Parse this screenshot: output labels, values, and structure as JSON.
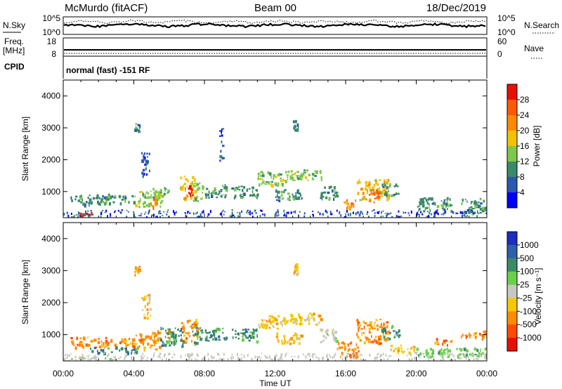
{
  "header": {
    "station_title": "McMurdo (fitACF)",
    "beam_title": "Beam 00",
    "date": "18/Dec/2019"
  },
  "top_panels": {
    "noise_left_label": "N.Sky",
    "noise_right_label": "N.Search",
    "noise_left_ticks": [
      "10^5",
      "10^0"
    ],
    "noise_right_ticks": [
      "10^5",
      "10^0"
    ],
    "freq_label_line1": "Freq.",
    "freq_label_line2": "[MHz]",
    "freq_ticks": [
      "18",
      "8"
    ],
    "nave_label": "Nave",
    "nave_ticks": [
      "60",
      "0"
    ],
    "cpid_label": "CPID",
    "cpid_text": "normal (fast) -151 RF"
  },
  "chart_data": [
    {
      "type": "heatmap",
      "name": "power",
      "ylabel": "Slant Range [km]",
      "y_ticks": [
        "1000",
        "2000",
        "3000",
        "4000"
      ],
      "colorbar_label": "Power [dB]",
      "colorbar_ticks": [
        "4",
        "8",
        "12",
        "16",
        "20",
        "24",
        "28"
      ],
      "colors": [
        "#0000ff",
        "#2b57b0",
        "#3a8a6a",
        "#7ec84a",
        "#f2c200",
        "#ff8a00",
        "#ff5a00",
        "#e81000"
      ],
      "x_ticks": [
        "00:00",
        "04:00",
        "08:00",
        "12:00",
        "16:00",
        "20:00",
        "00:00"
      ],
      "ylim_km": [
        180,
        4500
      ],
      "xlim_hours": [
        0,
        24
      ],
      "scatter_patches": [
        {
          "x0": 0.4,
          "x1": 2.6,
          "y0": 600,
          "y1": 950,
          "level": 2
        },
        {
          "x0": 2.5,
          "x1": 4.0,
          "y0": 650,
          "y1": 900,
          "level": 2
        },
        {
          "x0": 4.0,
          "x1": 5.6,
          "y0": 550,
          "y1": 1050,
          "level": 3
        },
        {
          "x0": 4.9,
          "x1": 5.3,
          "y0": 450,
          "y1": 900,
          "level": 5
        },
        {
          "x0": 5.0,
          "x1": 6.0,
          "y0": 800,
          "y1": 1150,
          "level": 3
        },
        {
          "x0": 6.6,
          "x1": 7.6,
          "y0": 800,
          "y1": 1500,
          "level": 4
        },
        {
          "x0": 7.0,
          "x1": 7.3,
          "y0": 900,
          "y1": 1250,
          "level": 7
        },
        {
          "x0": 7.3,
          "x1": 7.9,
          "y0": 700,
          "y1": 1300,
          "level": 3
        },
        {
          "x0": 8.0,
          "x1": 9.2,
          "y0": 800,
          "y1": 1250,
          "level": 2
        },
        {
          "x0": 9.5,
          "x1": 11.0,
          "y0": 800,
          "y1": 1200,
          "level": 2
        },
        {
          "x0": 11.0,
          "x1": 12.5,
          "y0": 1200,
          "y1": 1650,
          "level": 3
        },
        {
          "x0": 12.5,
          "x1": 14.6,
          "y0": 1350,
          "y1": 1700,
          "level": 3
        },
        {
          "x0": 12.0,
          "x1": 13.5,
          "y0": 750,
          "y1": 1100,
          "level": 2
        },
        {
          "x0": 14.5,
          "x1": 15.5,
          "y0": 800,
          "y1": 1200,
          "level": 2
        },
        {
          "x0": 15.8,
          "x1": 16.6,
          "y0": 500,
          "y1": 800,
          "level": 5
        },
        {
          "x0": 16.6,
          "x1": 18.4,
          "y0": 750,
          "y1": 1400,
          "level": 4
        },
        {
          "x0": 17.3,
          "x1": 17.9,
          "y0": 650,
          "y1": 1150,
          "level": 6
        },
        {
          "x0": 18.0,
          "x1": 19.0,
          "y0": 900,
          "y1": 1300,
          "level": 2
        },
        {
          "x0": 20.0,
          "x1": 22.0,
          "y0": 400,
          "y1": 850,
          "level": 2
        },
        {
          "x0": 22.5,
          "x1": 24.0,
          "y0": 350,
          "y1": 800,
          "level": 2
        },
        {
          "x0": 0.8,
          "x1": 1.6,
          "y0": 180,
          "y1": 380,
          "level": 7
        },
        {
          "x0": 4.4,
          "x1": 4.9,
          "y0": 1500,
          "y1": 2300,
          "level": 1
        },
        {
          "x0": 8.8,
          "x1": 9.0,
          "y0": 2000,
          "y1": 3000,
          "level": 1
        },
        {
          "x0": 13.0,
          "x1": 13.3,
          "y0": 2900,
          "y1": 3300,
          "level": 2
        },
        {
          "x0": 4.0,
          "x1": 4.3,
          "y0": 2900,
          "y1": 3200,
          "level": 2
        }
      ]
    },
    {
      "type": "heatmap",
      "name": "velocity",
      "ylabel": "Slant Range [km]",
      "y_ticks": [
        "1000",
        "2000",
        "3000",
        "4000"
      ],
      "colorbar_label": "Velocity  [m s⁻¹]",
      "colorbar_ticks": [
        "1000",
        "500",
        "100",
        "25",
        "-25",
        "-100",
        "-500",
        "-1000"
      ],
      "colors": [
        "#1a2ec0",
        "#2e5fa8",
        "#3a8a6a",
        "#6ad04a",
        "#c8c8c0",
        "#f5c800",
        "#ff8c00",
        "#ff4a00",
        "#e81000"
      ],
      "x_ticks": [
        "00:00",
        "04:00",
        "08:00",
        "12:00",
        "16:00",
        "20:00",
        "00:00"
      ],
      "xlabel": "Time UT",
      "ylim_km": [
        180,
        4500
      ],
      "xlim_hours": [
        0,
        24
      ],
      "scatter_patches": [
        {
          "x0": 0.4,
          "x1": 2.6,
          "y0": 600,
          "y1": 950,
          "level": 6
        },
        {
          "x0": 2.5,
          "x1": 4.0,
          "y0": 650,
          "y1": 900,
          "level": 6
        },
        {
          "x0": 4.0,
          "x1": 5.6,
          "y0": 550,
          "y1": 1050,
          "level": 6
        },
        {
          "x0": 1.5,
          "x1": 4.2,
          "y0": 450,
          "y1": 650,
          "level": 2
        },
        {
          "x0": 5.0,
          "x1": 6.0,
          "y0": 800,
          "y1": 1150,
          "level": 6
        },
        {
          "x0": 6.6,
          "x1": 7.6,
          "y0": 800,
          "y1": 1500,
          "level": 6
        },
        {
          "x0": 5.5,
          "x1": 6.8,
          "y0": 650,
          "y1": 1250,
          "level": 2
        },
        {
          "x0": 7.3,
          "x1": 7.9,
          "y0": 700,
          "y1": 1300,
          "level": 2
        },
        {
          "x0": 8.0,
          "x1": 9.2,
          "y0": 800,
          "y1": 1250,
          "level": 2
        },
        {
          "x0": 9.5,
          "x1": 11.0,
          "y0": 800,
          "y1": 1200,
          "level": 2
        },
        {
          "x0": 11.0,
          "x1": 12.5,
          "y0": 1200,
          "y1": 1650,
          "level": 5
        },
        {
          "x0": 12.5,
          "x1": 14.6,
          "y0": 1350,
          "y1": 1700,
          "level": 5
        },
        {
          "x0": 12.0,
          "x1": 13.5,
          "y0": 750,
          "y1": 1100,
          "level": 5
        },
        {
          "x0": 14.5,
          "x1": 15.5,
          "y0": 800,
          "y1": 1200,
          "level": 4
        },
        {
          "x0": 15.5,
          "x1": 16.7,
          "y0": 300,
          "y1": 800,
          "level": 6
        },
        {
          "x0": 16.6,
          "x1": 18.4,
          "y0": 750,
          "y1": 1500,
          "level": 6
        },
        {
          "x0": 18.0,
          "x1": 19.0,
          "y0": 900,
          "y1": 1300,
          "level": 2
        },
        {
          "x0": 18.5,
          "x1": 20.0,
          "y0": 450,
          "y1": 700,
          "level": 5
        },
        {
          "x0": 21.0,
          "x1": 22.0,
          "y0": 700,
          "y1": 900,
          "level": 6
        },
        {
          "x0": 22.5,
          "x1": 24.0,
          "y0": 900,
          "y1": 1150,
          "level": 6
        },
        {
          "x0": 20.0,
          "x1": 24.0,
          "y0": 300,
          "y1": 600,
          "level": 3
        },
        {
          "x0": 0.0,
          "x1": 3.0,
          "y0": 180,
          "y1": 330,
          "level": 4
        },
        {
          "x0": 4.4,
          "x1": 4.9,
          "y0": 1500,
          "y1": 2300,
          "level": 5
        },
        {
          "x0": 13.0,
          "x1": 13.3,
          "y0": 2900,
          "y1": 3300,
          "level": 5
        },
        {
          "x0": 4.0,
          "x1": 4.3,
          "y0": 2900,
          "y1": 3200,
          "level": 6
        }
      ]
    }
  ]
}
